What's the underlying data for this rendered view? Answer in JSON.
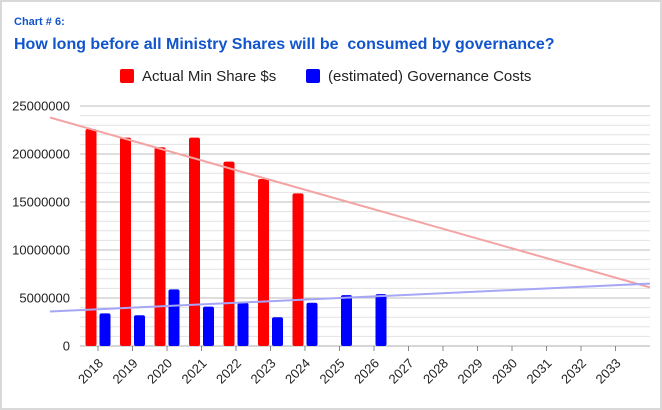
{
  "header": {
    "chart_number": "Chart # 6:",
    "title": "How long before all Ministry Shares will be  consumed by governance?"
  },
  "colors": {
    "series1": "#ff0000",
    "series2": "#0000ff",
    "trend1": "#f4a3a3",
    "trend2": "#a6a6f7",
    "grid": "#cccccc",
    "title": "#1155cc"
  },
  "chart_data": {
    "type": "bar",
    "title": "How long before all Ministry Shares will be  consumed by governance?",
    "xlabel": "",
    "ylabel": "",
    "ylim": [
      0,
      25000000
    ],
    "yticks": [
      "0",
      "5000000",
      "10000000",
      "15000000",
      "20000000",
      "25000000"
    ],
    "grid": true,
    "legend_position": "top-center",
    "categories": [
      "2018",
      "2019",
      "2020",
      "2021",
      "2022",
      "2023",
      "2024",
      "2025",
      "2026",
      "2027",
      "2028",
      "2029",
      "2030",
      "2031",
      "2032",
      "2033"
    ],
    "series": [
      {
        "name": "Actual Min Share $s",
        "color": "#ff0000",
        "values": [
          22600000,
          21700000,
          20700000,
          21700000,
          19200000,
          17400000,
          15900000,
          null,
          null,
          null,
          null,
          null,
          null,
          null,
          null,
          null
        ]
      },
      {
        "name": "(estimated) Governance Costs",
        "color": "#0000ff",
        "values": [
          3400000,
          3200000,
          5900000,
          4100000,
          4500000,
          3000000,
          4500000,
          5300000,
          5400000,
          null,
          null,
          null,
          null,
          null,
          null,
          null
        ]
      }
    ],
    "trendlines": [
      {
        "series": "Actual Min Share $s",
        "start": 23800000,
        "end": 6100000
      },
      {
        "series": "(estimated) Governance Costs",
        "start": 3600000,
        "end": 6500000
      }
    ]
  }
}
